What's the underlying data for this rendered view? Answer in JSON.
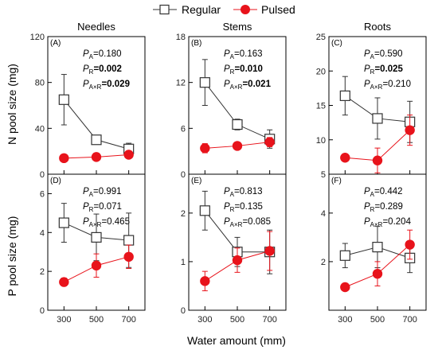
{
  "legend": {
    "regular_label": "Regular",
    "pulsed_label": "Pulsed",
    "regular_color": "#333333",
    "pulsed_color": "#e8131b"
  },
  "axes": {
    "ylabel_top": "N pool size (mg)",
    "ylabel_bottom": "P pool size (mg)",
    "xlabel": "Water amount (mm)"
  },
  "columns": [
    "Needles",
    "Stems",
    "Roots"
  ],
  "chart_data": [
    {
      "type": "line",
      "tag": "(A)",
      "x": [
        300,
        500,
        700
      ],
      "xlim": [
        200,
        800
      ],
      "ylim": [
        0,
        120
      ],
      "yticks": [
        0,
        40,
        80,
        120
      ],
      "series": [
        {
          "name": "Regular",
          "values": [
            65,
            30,
            22
          ],
          "errors": [
            22,
            2,
            5
          ]
        },
        {
          "name": "Pulsed",
          "values": [
            14,
            15,
            17
          ],
          "errors": [
            1.5,
            1.5,
            2
          ]
        }
      ],
      "stats": [
        {
          "sub": "A",
          "value": "0.180",
          "bold": false
        },
        {
          "sub": "R",
          "value": "0.002",
          "bold": true
        },
        {
          "sub": "A×R",
          "value": "0.029",
          "bold": true
        }
      ]
    },
    {
      "type": "line",
      "tag": "(B)",
      "x": [
        300,
        500,
        700
      ],
      "xlim": [
        200,
        800
      ],
      "ylim": [
        0,
        18
      ],
      "yticks": [
        0,
        6,
        12,
        18
      ],
      "series": [
        {
          "name": "Regular",
          "values": [
            12,
            6.5,
            4.6
          ],
          "errors": [
            3,
            0.7,
            1.2
          ]
        },
        {
          "name": "Pulsed",
          "values": [
            3.4,
            3.7,
            4.2
          ],
          "errors": [
            0.6,
            0.3,
            0.6
          ]
        }
      ],
      "stats": [
        {
          "sub": "A",
          "value": "0.163",
          "bold": false
        },
        {
          "sub": "R",
          "value": "0.010",
          "bold": true
        },
        {
          "sub": "A×R",
          "value": "0.021",
          "bold": true
        }
      ]
    },
    {
      "type": "line",
      "tag": "(C)",
      "x": [
        300,
        500,
        700
      ],
      "xlim": [
        200,
        800
      ],
      "ylim": [
        5,
        25
      ],
      "yticks": [
        5,
        10,
        15,
        20,
        25
      ],
      "series": [
        {
          "name": "Regular",
          "values": [
            16.4,
            13.1,
            12.6
          ],
          "errors": [
            2.8,
            3,
            3
          ]
        },
        {
          "name": "Pulsed",
          "values": [
            7.4,
            7.0,
            11.4
          ],
          "errors": [
            0.3,
            1.8,
            2.2
          ]
        }
      ],
      "stats": [
        {
          "sub": "A",
          "value": "0.590",
          "bold": false
        },
        {
          "sub": "R",
          "value": "0.025",
          "bold": true
        },
        {
          "sub": "A×R",
          "value": "0.210",
          "bold": false
        }
      ]
    },
    {
      "type": "line",
      "tag": "(D)",
      "x": [
        300,
        500,
        700
      ],
      "xlim": [
        200,
        800
      ],
      "ylim": [
        0,
        7
      ],
      "yticks": [
        0,
        2,
        4,
        6
      ],
      "series": [
        {
          "name": "Regular",
          "values": [
            4.5,
            3.75,
            3.6
          ],
          "errors": [
            1,
            1.2,
            1.4
          ]
        },
        {
          "name": "Pulsed",
          "values": [
            1.45,
            2.3,
            2.75
          ],
          "errors": [
            0.2,
            0.6,
            0.6
          ]
        }
      ],
      "stats": [
        {
          "sub": "A",
          "value": "0.991",
          "bold": false
        },
        {
          "sub": "R",
          "value": "0.071",
          "bold": false
        },
        {
          "sub": "A×R",
          "value": "0.465",
          "bold": false
        }
      ]
    },
    {
      "type": "line",
      "tag": "(E)",
      "x": [
        300,
        500,
        700
      ],
      "xlim": [
        200,
        800
      ],
      "ylim": [
        0,
        2.8
      ],
      "yticks": [
        0,
        1,
        2
      ],
      "series": [
        {
          "name": "Regular",
          "values": [
            2.05,
            1.2,
            1.2
          ],
          "errors": [
            0.4,
            0.3,
            0.45
          ]
        },
        {
          "name": "Pulsed",
          "values": [
            0.6,
            1.03,
            1.22
          ],
          "errors": [
            0.2,
            0.25,
            0.4
          ]
        }
      ],
      "stats": [
        {
          "sub": "A",
          "value": "0.813",
          "bold": false
        },
        {
          "sub": "R",
          "value": "0.135",
          "bold": false
        },
        {
          "sub": "A×R",
          "value": "0.085",
          "bold": false
        }
      ]
    },
    {
      "type": "line",
      "tag": "(F)",
      "x": [
        300,
        500,
        700
      ],
      "xlim": [
        200,
        800
      ],
      "ylim": [
        0,
        5.6
      ],
      "yticks": [
        2,
        4
      ],
      "series": [
        {
          "name": "Regular",
          "values": [
            2.25,
            2.6,
            2.15
          ],
          "errors": [
            0.5,
            0.85,
            0.6
          ]
        },
        {
          "name": "Pulsed",
          "values": [
            0.95,
            1.5,
            2.7
          ],
          "errors": [
            0.05,
            0.5,
            0.6
          ]
        }
      ],
      "stats": [
        {
          "sub": "A",
          "value": "0.442",
          "bold": false
        },
        {
          "sub": "R",
          "value": "0.289",
          "bold": false
        },
        {
          "sub": "A×R",
          "value": "0.204",
          "bold": false
        }
      ]
    }
  ]
}
